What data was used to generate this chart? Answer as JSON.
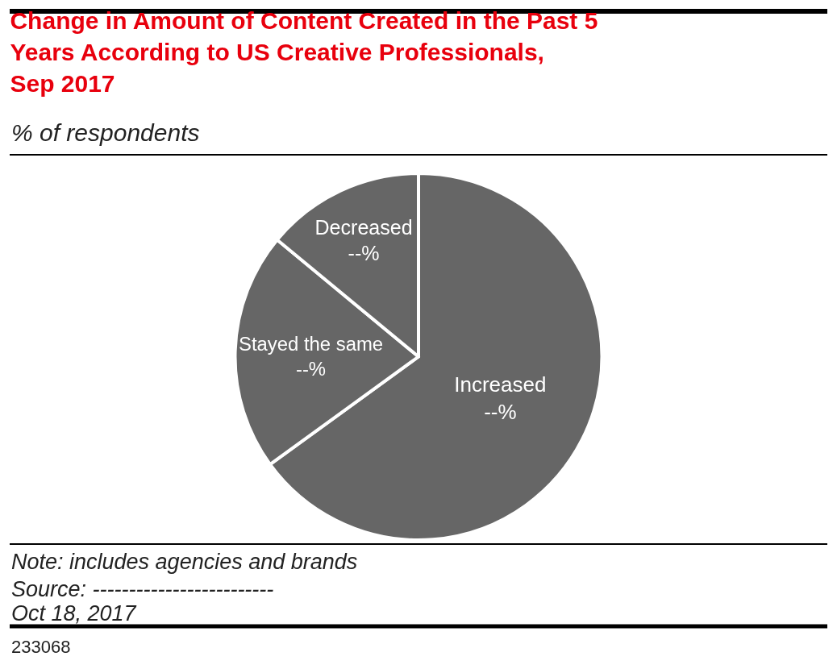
{
  "chart_data": {
    "type": "pie",
    "title": "Change in Amount of Content Created in the Past 5\nYears According to US Creative Professionals,\nSep 2017",
    "subtitle": "% of respondents",
    "categories": [
      "Increased",
      "Stayed the same",
      "Decreased"
    ],
    "values": [
      65,
      21,
      14
    ],
    "value_labels": [
      "--%",
      "--%",
      "--%"
    ],
    "colors": [
      "#666666",
      "#666666",
      "#666666"
    ],
    "legend": false,
    "annotations": [
      "Note: includes agencies and brands",
      "Source: -------------------------",
      "Oct 18, 2017",
      "233068"
    ]
  }
}
